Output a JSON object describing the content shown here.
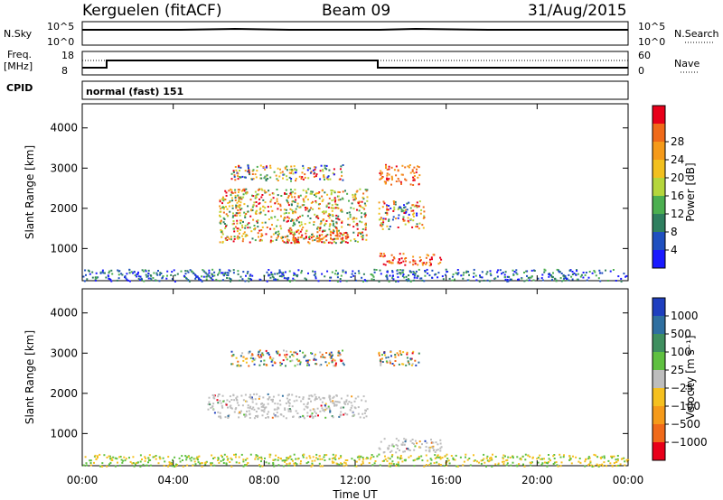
{
  "header": {
    "station": "Kerguelen (fitACF)",
    "beam": "Beam 09",
    "date": "31/Aug/2015"
  },
  "top_panels": {
    "nsky_label": "N.Sky",
    "nsky_ticks": [
      "10^5",
      "10^0"
    ],
    "nsearch_label": "N.Search",
    "nsearch_ticks": [
      "10^5",
      "10^0"
    ],
    "freq_label_line1": "Freq.",
    "freq_label_line2": "[MHz]",
    "freq_ticks": [
      "18",
      "8"
    ],
    "nave_label": "Nave",
    "nave_ticks": [
      "60",
      "0"
    ],
    "cpid_label": "CPID",
    "cpid_value": "normal (fast) 151"
  },
  "chart_data": [
    {
      "type": "heatmap",
      "name": "power",
      "ylabel": "Slant Range [km]",
      "xlabel": "",
      "yticks": [
        "1000",
        "2000",
        "3000",
        "4000"
      ],
      "ylim": [
        200,
        4600
      ],
      "xlim_hours": [
        0,
        24
      ],
      "colorbar": {
        "label": "Power [dB]",
        "ticks": [
          "4",
          "8",
          "12",
          "16",
          "20",
          "24",
          "28"
        ],
        "colors": [
          "#1a1aff",
          "#1f4fbf",
          "#2f7f5f",
          "#4caf50",
          "#b5d63c",
          "#f2c01f",
          "#f59a1a",
          "#f06a1a",
          "#e8001a"
        ]
      },
      "echo_regions": [
        {
          "t0": 6.0,
          "t1": 12.5,
          "r0": 1150,
          "r1": 2500,
          "level": "mixed-high"
        },
        {
          "t0": 9.0,
          "t1": 11.7,
          "r0": 1150,
          "r1": 1500,
          "level": "high"
        },
        {
          "t0": 6.5,
          "t1": 11.5,
          "r0": 2700,
          "r1": 3100,
          "level": "mixed"
        },
        {
          "t0": 13.0,
          "t1": 15.8,
          "r0": 600,
          "r1": 900,
          "level": "high"
        },
        {
          "t0": 13.0,
          "t1": 14.8,
          "r0": 2600,
          "r1": 3100,
          "level": "high"
        },
        {
          "t0": 13.0,
          "t1": 15.0,
          "r0": 1500,
          "r1": 2200,
          "level": "mixed"
        },
        {
          "t0": 0.0,
          "t1": 24.0,
          "r0": 200,
          "r1": 500,
          "level": "low"
        }
      ]
    },
    {
      "type": "heatmap",
      "name": "velocity",
      "ylabel": "Slant Range [km]",
      "xlabel": "Time UT",
      "yticks": [
        "1000",
        "2000",
        "3000",
        "4000"
      ],
      "ylim": [
        200,
        4600
      ],
      "xlim_hours": [
        0,
        24
      ],
      "xticks": [
        "00:00",
        "04:00",
        "08:00",
        "12:00",
        "16:00",
        "20:00",
        "00:00"
      ],
      "colorbar": {
        "label": "Velocity [m s⁻¹]",
        "ticks": [
          "1000",
          "500",
          "100",
          "25",
          "−25",
          "−100",
          "−500",
          "−1000"
        ],
        "colors": [
          "#1f3fbf",
          "#2f6fa0",
          "#3f8f5f",
          "#5fc040",
          "#bdbdbd",
          "#f5c01f",
          "#f59a1a",
          "#f06a1a",
          "#e8001a"
        ]
      },
      "echo_regions": [
        {
          "t0": 5.5,
          "t1": 12.5,
          "r0": 1400,
          "r1": 2000,
          "level": "ground-scatter"
        },
        {
          "t0": 13.0,
          "t1": 15.8,
          "r0": 550,
          "r1": 900,
          "level": "ground-scatter"
        },
        {
          "t0": 6.5,
          "t1": 11.5,
          "r0": 2700,
          "r1": 3100,
          "level": "mixed"
        },
        {
          "t0": 13.0,
          "t1": 14.8,
          "r0": 2700,
          "r1": 3100,
          "level": "mixed"
        },
        {
          "t0": 0.0,
          "t1": 24.0,
          "r0": 200,
          "r1": 500,
          "level": "low"
        }
      ]
    }
  ]
}
